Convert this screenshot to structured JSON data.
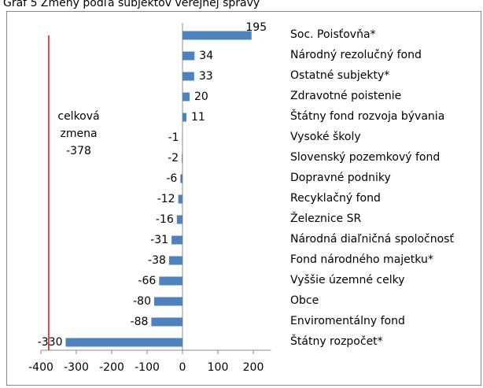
{
  "chart_data": {
    "type": "barh",
    "title": "Graf 5 Zmeny podľa subjektov verejnej správy",
    "categories": [
      "Soc. Poisťovňa*",
      "Národný rezolučný fond",
      "Ostatné subjekty*",
      "Zdravotné poistenie",
      "Štátny fond rozvoja bývania",
      "Vysoké školy",
      "Slovenský pozemkový fond",
      "Dopravné podniky",
      "Recyklačný fond",
      "Železnice SR",
      "Národná diaľničná spoločnosť",
      "Fond národného majetku*",
      "Vyššie územné celky",
      "Obce",
      "Enviromentálny fond",
      "Štátny rozpočet*"
    ],
    "values": [
      195,
      34,
      33,
      20,
      11,
      -1,
      -2,
      -6,
      -12,
      -16,
      -31,
      -38,
      -66,
      -80,
      -88,
      -330
    ],
    "color": "#4f81bd",
    "xlim": [
      -400,
      250
    ],
    "xticks": [
      -400,
      -300,
      -200,
      -100,
      0,
      100,
      200
    ],
    "negative_tick_color": "#ff0000",
    "annotation": {
      "lines": [
        "celková",
        "zmena"
      ],
      "value": -378,
      "color": "#ff0000"
    }
  }
}
